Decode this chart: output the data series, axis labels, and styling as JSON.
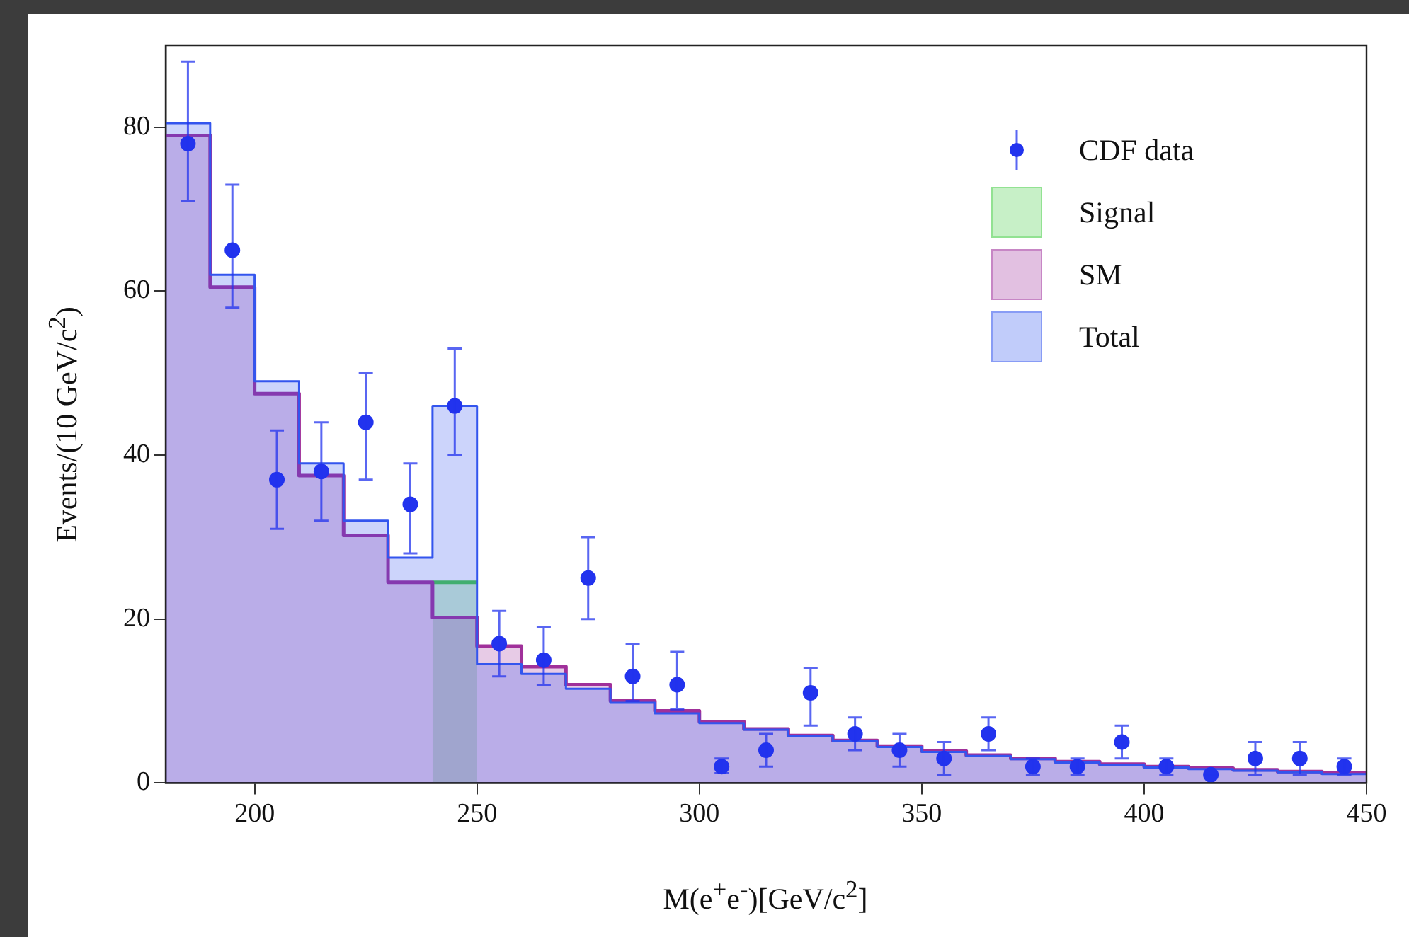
{
  "chart_data": {
    "type": "area",
    "xlabel": "M(e$^{+}$e$^{-}$)[GeV/c$^{2}$]",
    "ylabel": "Events/(10 GeV/c$^{2}$)",
    "series": [
      {
        "name": "CDF data",
        "type": "scatter",
        "marker": "circle",
        "color": "#2233ee",
        "x": [
          185,
          195,
          205,
          215,
          225,
          235,
          245,
          255,
          265,
          275,
          285,
          295,
          305,
          315,
          325,
          335,
          345,
          355,
          365,
          375,
          385,
          395,
          405,
          415,
          425,
          435,
          445
        ],
        "values": [
          78,
          65,
          37,
          38,
          44,
          34,
          46,
          17,
          15,
          25,
          13,
          12,
          2,
          4,
          11,
          6,
          4,
          3,
          6,
          2,
          2,
          5,
          2,
          1,
          3,
          3,
          2
        ],
        "errors": [
          [
            71,
            88
          ],
          [
            58,
            73
          ],
          [
            31,
            43
          ],
          [
            32,
            44
          ],
          [
            37,
            50
          ],
          [
            28,
            39
          ],
          [
            40,
            53
          ],
          [
            13,
            21
          ],
          [
            12,
            19
          ],
          [
            20,
            30
          ],
          [
            10,
            17
          ],
          [
            9,
            16
          ],
          [
            1.2,
            3
          ],
          [
            2,
            6
          ],
          [
            7,
            14
          ],
          [
            4,
            8
          ],
          [
            2,
            6
          ],
          [
            1,
            5
          ],
          [
            4,
            8
          ],
          [
            1,
            3
          ],
          [
            1,
            3
          ],
          [
            3,
            7
          ],
          [
            1,
            3
          ],
          [
            1,
            1
          ],
          [
            1,
            5
          ],
          [
            1,
            5
          ],
          [
            1,
            3
          ]
        ]
      },
      {
        "name": "Signal",
        "type": "area",
        "marker": "none",
        "color": "#44cc44",
        "x": [
          240,
          250
        ],
        "values": [
          24.5,
          24.5
        ]
      },
      {
        "name": "SM",
        "type": "area",
        "marker": "none",
        "color": "#a0309a",
        "x": [
          180,
          190,
          190,
          200,
          200,
          210,
          210,
          220,
          220,
          230,
          230,
          240,
          240,
          250,
          250,
          260,
          260,
          270,
          270,
          280,
          280,
          290,
          290,
          300,
          300,
          310,
          310,
          320,
          320,
          330,
          330,
          340,
          340,
          350,
          350,
          360,
          360,
          370,
          370,
          380,
          380,
          390,
          390,
          400,
          400,
          410,
          410,
          420,
          420,
          430,
          430,
          440,
          440,
          450
        ],
        "values": [
          79,
          79,
          60.5,
          60.5,
          47.5,
          47.5,
          37.5,
          37.5,
          30.2,
          30.2,
          24.5,
          24.5,
          20.2,
          20.2,
          16.7,
          16.7,
          14.2,
          14.2,
          12,
          12,
          10,
          10,
          8.8,
          8.8,
          7.5,
          7.5,
          6.6,
          6.6,
          5.8,
          5.8,
          5.2,
          5.2,
          4.5,
          4.5,
          3.9,
          3.9,
          3.4,
          3.4,
          3,
          3,
          2.6,
          2.6,
          2.3,
          2.3,
          2,
          2,
          1.8,
          1.8,
          1.6,
          1.6,
          1.4,
          1.4,
          1.2,
          1.2
        ]
      },
      {
        "name": "Total",
        "type": "area",
        "marker": "none",
        "color": "#3355ee",
        "x": [
          180,
          190,
          190,
          200,
          200,
          210,
          210,
          220,
          220,
          230,
          230,
          240,
          240,
          250,
          250,
          260,
          260,
          270,
          270,
          280,
          280,
          290,
          290,
          300,
          300,
          310,
          310,
          320,
          320,
          330,
          330,
          340,
          340,
          350,
          350,
          360,
          360,
          370,
          370,
          380,
          380,
          390,
          390,
          400,
          400,
          410,
          410,
          420,
          420,
          430,
          430,
          440,
          440,
          450
        ],
        "values": [
          80.5,
          80.5,
          62,
          62,
          49,
          49,
          39,
          39,
          32,
          32,
          27.5,
          27.5,
          46,
          46,
          14.5,
          14.5,
          13.3,
          13.3,
          11.5,
          11.5,
          9.8,
          9.8,
          8.5,
          8.5,
          7.3,
          7.3,
          6.5,
          6.5,
          5.7,
          5.7,
          5.1,
          5.1,
          4.4,
          4.4,
          3.8,
          3.8,
          3.3,
          3.3,
          2.9,
          2.9,
          2.5,
          2.5,
          2.2,
          2.2,
          1.9,
          1.9,
          1.7,
          1.7,
          1.5,
          1.5,
          1.3,
          1.3,
          1.1,
          1.1
        ]
      }
    ],
    "xlim": [
      180,
      450
    ],
    "xticks": [
      200,
      250,
      300,
      350,
      400,
      450
    ],
    "ylim": [
      0,
      90
    ],
    "yticks": [
      0,
      20,
      40,
      60,
      80
    ],
    "grid": false,
    "legend": "top right"
  }
}
